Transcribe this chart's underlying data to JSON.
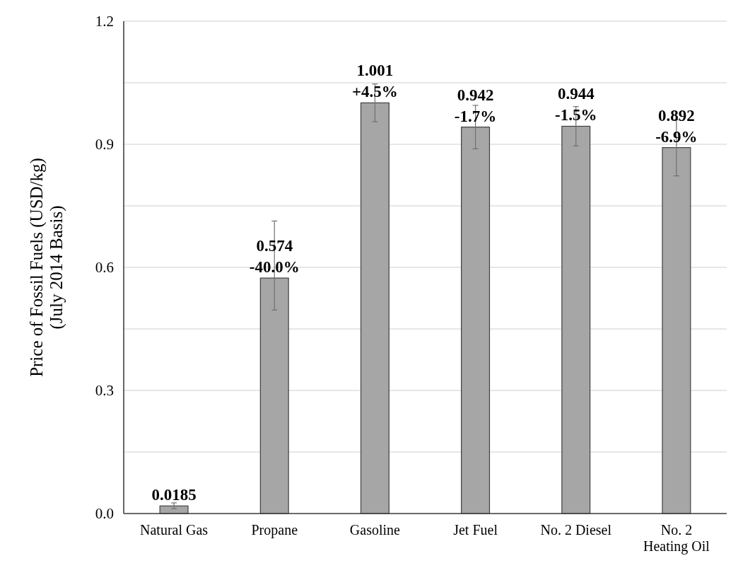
{
  "chart_data": {
    "type": "bar",
    "ylabel": "Price of Fossil Fuels (USD/kg)\n(July 2014 Basis)",
    "categories": [
      "Natural Gas",
      "Propane",
      "Gasoline",
      "Jet Fuel",
      "No. 2 Diesel",
      "No. 2 Heating Oil"
    ],
    "values": [
      0.0185,
      0.574,
      1.001,
      0.942,
      0.944,
      0.892
    ],
    "errors": [
      [
        0.012,
        0.026
      ],
      [
        0.496,
        0.713
      ],
      [
        0.955,
        1.047
      ],
      [
        0.889,
        0.995
      ],
      [
        0.896,
        0.992
      ],
      [
        0.823,
        0.96
      ]
    ],
    "value_labels": [
      "0.0185",
      "0.574\n-40.0%",
      "1.001\n+4.5%",
      "0.942\n-1.7%",
      "0.944\n-1.5%",
      "0.892\n-6.9%"
    ],
    "color": "#a6a6a6",
    "ylim": [
      0,
      1.2
    ],
    "yticks": [
      {
        "value": 0,
        "label": "0.0"
      },
      {
        "value": 0.15,
        "label": null
      },
      {
        "value": 0.3,
        "label": "0.3"
      },
      {
        "value": 0.45,
        "label": null
      },
      {
        "value": 0.6,
        "label": "0.6"
      },
      {
        "value": 0.75,
        "label": null
      },
      {
        "value": 0.9,
        "label": "0.9"
      },
      {
        "value": 1.05,
        "label": null
      },
      {
        "value": 1.2,
        "label": "1.2"
      }
    ],
    "grid": "y"
  }
}
